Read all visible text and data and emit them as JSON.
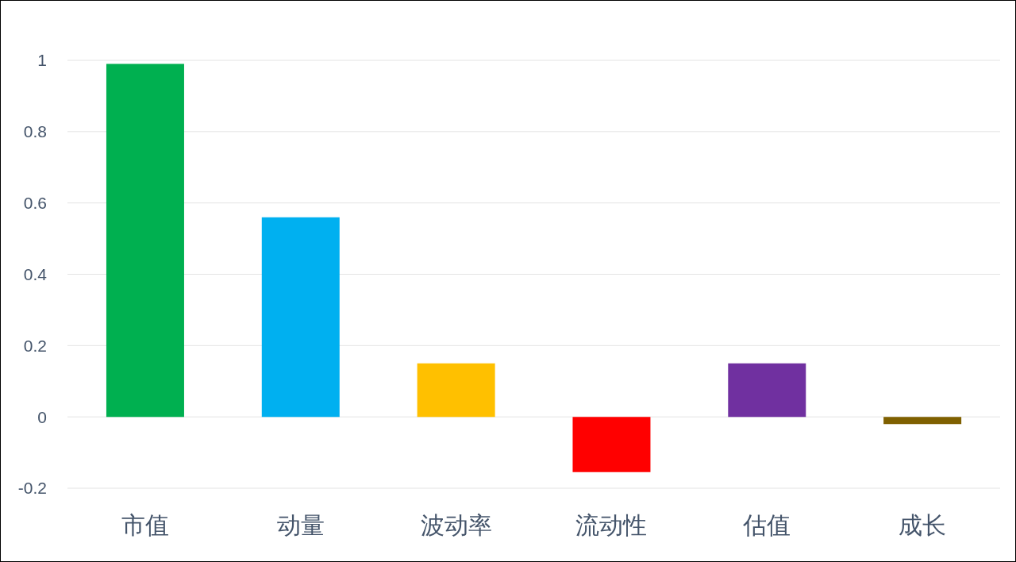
{
  "chart_data": {
    "type": "bar",
    "categories": [
      "市值",
      "动量",
      "波动率",
      "流动性",
      "估值",
      "成长"
    ],
    "values": [
      0.99,
      0.56,
      0.15,
      -0.155,
      0.15,
      -0.02
    ],
    "colors": [
      "#00b050",
      "#00b0f0",
      "#ffc000",
      "#ff0000",
      "#7030a0",
      "#7f6000"
    ],
    "ylim": [
      -0.2,
      1
    ],
    "yticks": [
      -0.2,
      0,
      0.2,
      0.4,
      0.6,
      0.8,
      1
    ],
    "grid": "y"
  }
}
